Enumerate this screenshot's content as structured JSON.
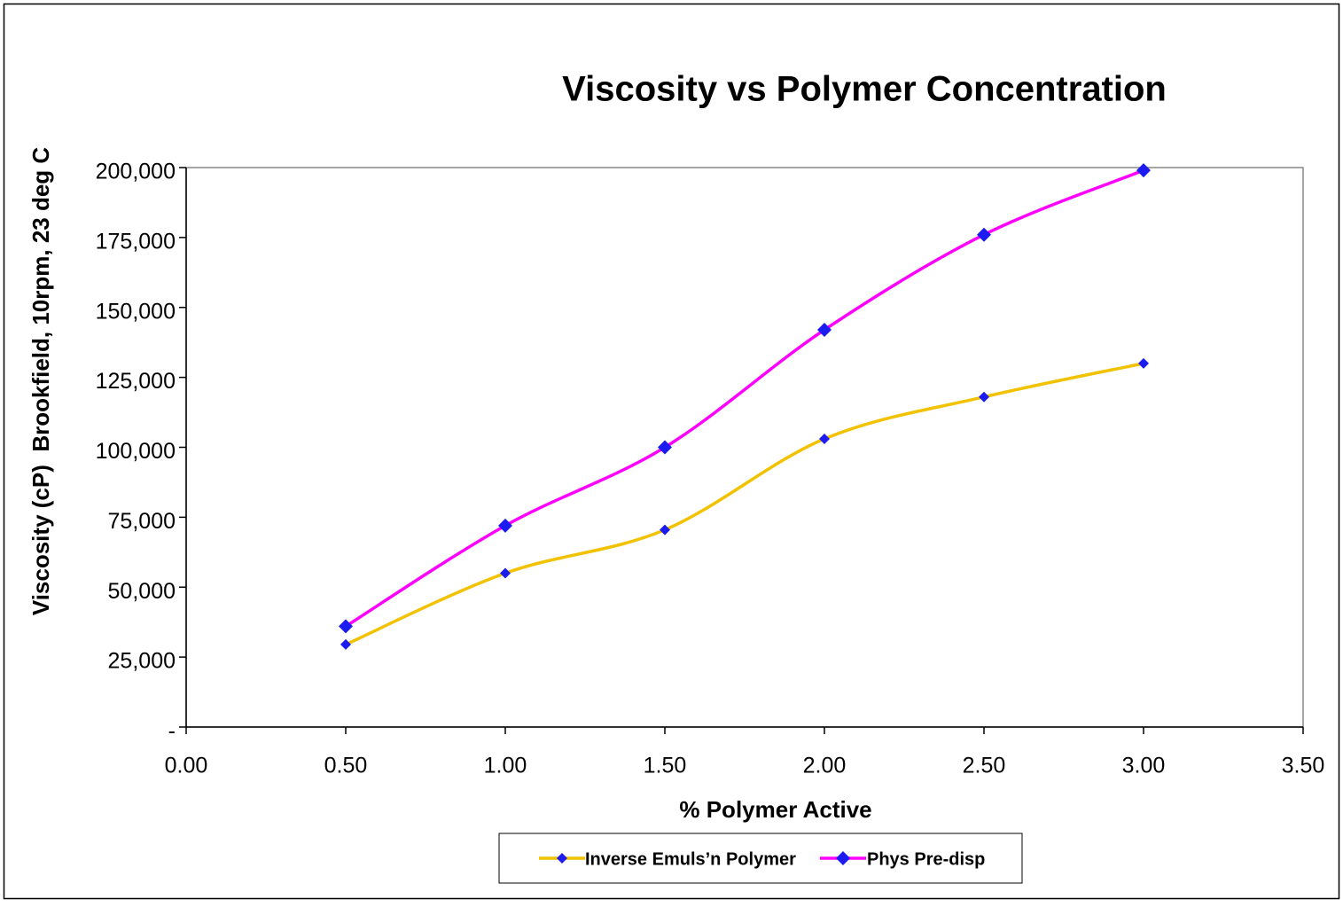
{
  "chart_data": {
    "type": "line",
    "title": "Viscosity vs Polymer Concentration",
    "x_label": "% Polymer Active",
    "y_label": "Viscosity (cP)  Brookfield, 10rpm, 23 deg C",
    "x": [
      0.5,
      1.0,
      1.5,
      2.0,
      2.5,
      3.0
    ],
    "series": [
      {
        "name": "Inverse Emuls’n Polymer",
        "color": "#f2c200",
        "marker_color": "#1c1cf0",
        "values": [
          29500,
          55000,
          70500,
          103000,
          118000,
          130000
        ]
      },
      {
        "name": "Phys Pre-disp",
        "color": "#ff00ff",
        "marker_color": "#1c1cf0",
        "values": [
          36000,
          72000,
          100000,
          142000,
          176000,
          199000
        ]
      }
    ],
    "xlim": [
      0,
      3.5
    ],
    "xticks": [
      {
        "value": 0,
        "label": "0.00"
      },
      {
        "value": 0.5,
        "label": "0.50"
      },
      {
        "value": 1,
        "label": "1.00"
      },
      {
        "value": 1.5,
        "label": "1.50"
      },
      {
        "value": 2,
        "label": "2.00"
      },
      {
        "value": 2.5,
        "label": "2.50"
      },
      {
        "value": 3,
        "label": "3.00"
      },
      {
        "value": 3.5,
        "label": "3.50"
      }
    ],
    "ylim": [
      0,
      200000
    ],
    "yticks": [
      {
        "value": 0,
        "label": "-"
      },
      {
        "value": 25000,
        "label": "25,000"
      },
      {
        "value": 50000,
        "label": "50,000"
      },
      {
        "value": 75000,
        "label": "75,000"
      },
      {
        "value": 100000,
        "label": "100,000"
      },
      {
        "value": 125000,
        "label": "125,000"
      },
      {
        "value": 150000,
        "label": "150,000"
      },
      {
        "value": 175000,
        "label": "175,000"
      },
      {
        "value": 200000,
        "label": "200,000"
      }
    ],
    "smooth": true,
    "legend": "bottom"
  }
}
